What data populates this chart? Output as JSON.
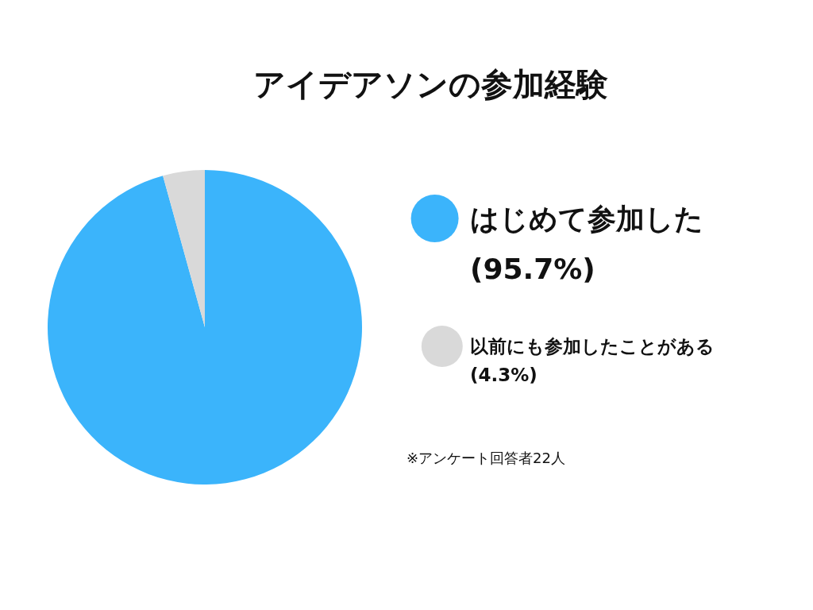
{
  "chart_data": {
    "type": "pie",
    "title": "アイデアソンの参加経験",
    "categories": [
      "はじめて参加した",
      "以前にも参加したことがある"
    ],
    "values": [
      95.7,
      4.3
    ],
    "colors": [
      "#3bb4fb",
      "#d9d9d9"
    ],
    "value_labels": [
      "(95.7%)",
      "(4.3%)"
    ],
    "legend": "right",
    "annotations": [
      "※アンケート回答者22人"
    ]
  }
}
